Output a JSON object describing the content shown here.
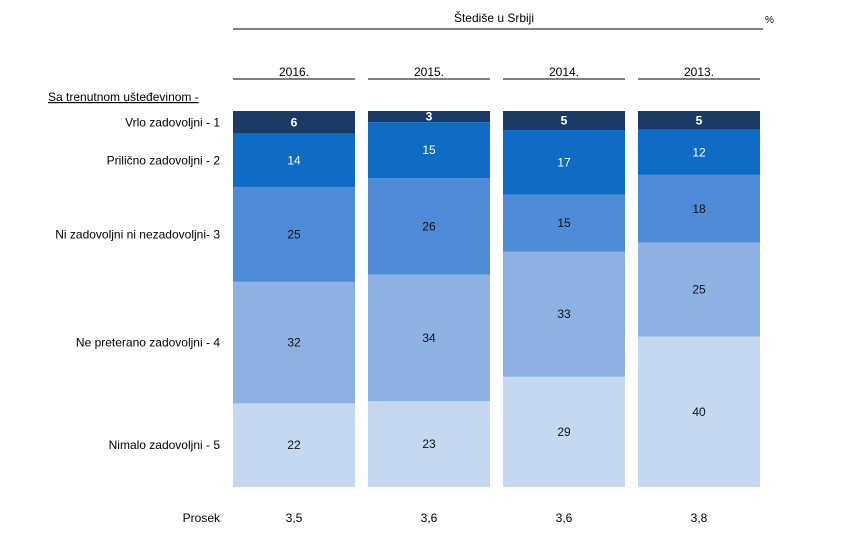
{
  "chart_data": {
    "type": "bar",
    "stacked": true,
    "normalized": true,
    "title": "Štediše u Srbiji",
    "unit": "%",
    "row_header": "Sa trenutnom ušteđevinom -",
    "categories": [
      "2016.",
      "2015.",
      "2014.",
      "2013."
    ],
    "series": [
      {
        "name": "Vrlo zadovoljni - 1",
        "color": "#1b3a66",
        "values": [
          6,
          3,
          5,
          5
        ]
      },
      {
        "name": "Prilično zadovoljni - 2",
        "color": "#0f6cc4",
        "values": [
          14,
          15,
          17,
          12
        ]
      },
      {
        "name": "Ni zadovoljni ni nezadovoljni- 3",
        "color": "#4f8bd6",
        "values": [
          25,
          26,
          15,
          18
        ]
      },
      {
        "name": "Ne preterano zadovoljni - 4",
        "color": "#8cb1e2",
        "values": [
          32,
          34,
          33,
          25
        ]
      },
      {
        "name": "Nimalo zadovoljni - 5",
        "color": "#c6d8f0",
        "values": [
          22,
          23,
          29,
          40
        ]
      }
    ],
    "summary_row": {
      "label": "Prosek",
      "values": [
        "3,5",
        "3,6",
        "3,6",
        "3,8"
      ]
    }
  }
}
